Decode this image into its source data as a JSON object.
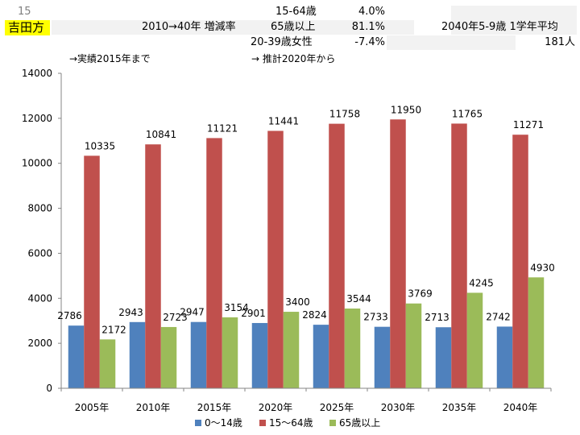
{
  "header": {
    "row_number": "15",
    "place_name": "吉田方",
    "place_highlight_color": "#ffff00",
    "rate_heading": "2010→40年 増減率",
    "rows": [
      {
        "label": "15-64歳",
        "value": "4.0%"
      },
      {
        "label": "65歳以上",
        "value": "81.1%"
      },
      {
        "label": "20-39歳女性",
        "value": "-7.4%"
      }
    ],
    "right_heading": "2040年5-9歳 1学年平均",
    "right_value": "181人",
    "note_actual": "→実績2015年まで",
    "note_projection": "→ 推計2020年から"
  },
  "chart_data": {
    "type": "bar",
    "title": "",
    "xlabel": "",
    "ylabel": "",
    "categories": [
      "2005年",
      "2010年",
      "2015年",
      "2020年",
      "2025年",
      "2030年",
      "2035年",
      "2040年"
    ],
    "ylim": [
      0,
      14000
    ],
    "yticks": [
      0,
      2000,
      4000,
      6000,
      8000,
      10000,
      12000,
      14000
    ],
    "grid": false,
    "legend_position": "bottom",
    "series": [
      {
        "name": "0～14歳",
        "color": "#4f81bd",
        "values": [
          2786,
          2943,
          2947,
          2901,
          2824,
          2733,
          2713,
          2742
        ]
      },
      {
        "name": "15～64歳",
        "color": "#c0504d",
        "values": [
          10335,
          10841,
          11121,
          11441,
          11758,
          11950,
          11765,
          11271
        ]
      },
      {
        "name": "65歳以上",
        "color": "#9bbb59",
        "values": [
          2172,
          2723,
          3154,
          3400,
          3544,
          3769,
          4245,
          4930
        ]
      }
    ]
  }
}
